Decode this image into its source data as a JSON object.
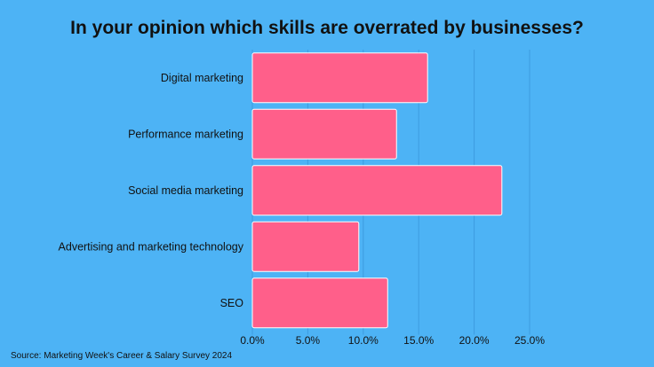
{
  "chart_data": {
    "type": "bar",
    "orientation": "horizontal",
    "title": "In your opinion which skills are overrated by businesses?",
    "categories": [
      "Digital marketing",
      "Performance marketing",
      "Social media marketing",
      "Advertising and marketing technology",
      "SEO"
    ],
    "values": [
      15.8,
      13.0,
      22.5,
      9.6,
      12.2
    ],
    "xlim": [
      0,
      25
    ],
    "x_ticks": [
      0,
      5,
      10,
      15,
      20,
      25
    ],
    "x_tick_labels": [
      "0.0%",
      "5.0%",
      "10.0%",
      "15.0%",
      "20.0%",
      "25.0%"
    ],
    "xlabel": "",
    "ylabel": "",
    "grid": "vertical",
    "legend": "none",
    "colors": {
      "background": "#4db3f5",
      "bar": "#ff5f8a",
      "bar_edge": "#ffffff",
      "grid": "#3d9be0"
    },
    "source": "Source: Marketing Week's Career & Salary Survey 2024"
  }
}
